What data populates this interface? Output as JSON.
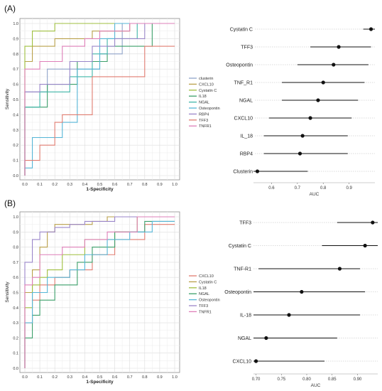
{
  "figure": {
    "panel_labels": [
      "(A)",
      "(B)"
    ]
  },
  "chart_data": [
    {
      "id": "A-roc",
      "type": "line",
      "panel": "(A)",
      "xlabel": "1-Specificity",
      "ylabel": "Sensitivity",
      "xlim": [
        0,
        1
      ],
      "ylim": [
        0,
        1
      ],
      "xticks": [
        "0.0",
        "0.1",
        "0.2",
        "0.3",
        "0.4",
        "0.5",
        "0.6",
        "0.7",
        "0.8",
        "0.9",
        "1.0"
      ],
      "yticks": [
        "0.0",
        "0.1",
        "0.2",
        "0.3",
        "0.4",
        "0.5",
        "0.6",
        "0.7",
        "0.8",
        "0.9",
        "1.0"
      ],
      "grid": true,
      "legend_position": "right",
      "series": [
        {
          "name": "clusterin",
          "color": "#8fa3c9",
          "x": [
            0,
            0,
            0.15,
            0.15,
            0.5,
            0.5,
            0.65,
            0.65,
            1.0
          ],
          "y": [
            0,
            0.55,
            0.55,
            0.7,
            0.7,
            0.8,
            0.8,
            1.0,
            1.0
          ]
        },
        {
          "name": "CXCL10",
          "color": "#b9a04a",
          "x": [
            0,
            0,
            0.05,
            0.05,
            0.2,
            0.2,
            0.45,
            0.45,
            0.7,
            0.7,
            1.0
          ],
          "y": [
            0,
            0.75,
            0.75,
            0.85,
            0.85,
            0.9,
            0.9,
            0.95,
            0.95,
            1.0,
            1.0
          ]
        },
        {
          "name": "Cystatin C",
          "color": "#9fbf3f",
          "x": [
            0,
            0,
            0.05,
            0.05,
            0.2,
            0.2,
            1.0
          ],
          "y": [
            0,
            0.85,
            0.85,
            0.95,
            0.95,
            1.0,
            1.0
          ]
        },
        {
          "name": "IL18",
          "color": "#3c9f6a",
          "x": [
            0,
            0,
            0.15,
            0.15,
            0.35,
            0.35,
            0.55,
            0.55,
            0.85,
            0.85,
            1.0
          ],
          "y": [
            0,
            0.45,
            0.45,
            0.6,
            0.6,
            0.75,
            0.75,
            0.85,
            0.85,
            1.0,
            1.0
          ]
        },
        {
          "name": "NGAL",
          "color": "#3fb6a8",
          "x": [
            0,
            0,
            0.1,
            0.1,
            0.3,
            0.3,
            0.45,
            0.45,
            0.55,
            0.55,
            0.75,
            0.75,
            1.0
          ],
          "y": [
            0,
            0.45,
            0.45,
            0.55,
            0.55,
            0.65,
            0.65,
            0.8,
            0.8,
            0.9,
            0.9,
            1.0,
            1.0
          ]
        },
        {
          "name": "Osteopontin",
          "color": "#55b5d6",
          "x": [
            0,
            0,
            0.05,
            0.05,
            0.25,
            0.25,
            0.35,
            0.35,
            0.5,
            0.5,
            0.6,
            0.6,
            1.0
          ],
          "y": [
            0,
            0.05,
            0.05,
            0.25,
            0.25,
            0.35,
            0.35,
            0.7,
            0.7,
            0.9,
            0.9,
            1.0,
            1.0
          ]
        },
        {
          "name": "RBP4",
          "color": "#9a86c9",
          "x": [
            0,
            0,
            0.1,
            0.1,
            0.3,
            0.3,
            0.45,
            0.45,
            0.6,
            0.6,
            0.8,
            0.8,
            1.0
          ],
          "y": [
            0,
            0.55,
            0.55,
            0.6,
            0.6,
            0.75,
            0.75,
            0.85,
            0.85,
            0.9,
            0.9,
            1.0,
            1.0
          ]
        },
        {
          "name": "TFF3",
          "color": "#e07c70",
          "x": [
            0,
            0,
            0.1,
            0.1,
            0.2,
            0.2,
            0.25,
            0.25,
            0.45,
            0.45,
            0.8,
            0.8,
            1.0
          ],
          "y": [
            0,
            0.1,
            0.1,
            0.2,
            0.2,
            0.35,
            0.35,
            0.4,
            0.4,
            0.65,
            0.65,
            0.85,
            0.85
          ]
        },
        {
          "name": "TNFR1",
          "color": "#de7fb8",
          "x": [
            0,
            0,
            0.1,
            0.1,
            0.25,
            0.25,
            0.4,
            0.4,
            0.5,
            0.5,
            0.7,
            0.7,
            1.0
          ],
          "y": [
            0,
            0.7,
            0.7,
            0.75,
            0.75,
            0.85,
            0.85,
            0.9,
            0.9,
            0.95,
            0.95,
            1.0,
            1.0
          ]
        }
      ]
    },
    {
      "id": "A-auc",
      "type": "scatter",
      "panel": "(A)",
      "xlabel": "AUC",
      "xticks": [
        0.6,
        0.7,
        0.8,
        0.9
      ],
      "xtick_labels": [
        "0.6",
        "0.7",
        "0.8",
        "0.9"
      ],
      "xlim": [
        0.53,
        1.0
      ],
      "categories": [
        "Cystatin C",
        "TFF3",
        "Osteopontin",
        "TNF_R1",
        "NGAL",
        "CXCL10",
        "IL_18",
        "RBP4",
        "Clusterin"
      ],
      "values": [
        0.985,
        0.86,
        0.84,
        0.8,
        0.78,
        0.75,
        0.72,
        0.71,
        0.545
      ],
      "ci_low": [
        0.955,
        0.75,
        0.7,
        0.64,
        0.64,
        0.59,
        0.57,
        0.57,
        0.53
      ],
      "ci_high": [
        1.0,
        0.985,
        0.975,
        0.96,
        0.935,
        0.91,
        0.895,
        0.895,
        0.74
      ]
    },
    {
      "id": "B-roc",
      "type": "line",
      "panel": "(B)",
      "xlabel": "1-Specificity",
      "ylabel": "Sensitivity",
      "xlim": [
        0,
        1
      ],
      "ylim": [
        0,
        1
      ],
      "xticks": [
        "0.0",
        "0.1",
        "0.2",
        "0.3",
        "0.4",
        "0.5",
        "0.6",
        "0.7",
        "0.8",
        "0.9",
        "1.0"
      ],
      "yticks": [
        "0.0",
        "0.1",
        "0.2",
        "0.3",
        "0.4",
        "0.5",
        "0.6",
        "0.7",
        "0.8",
        "0.9",
        "1.0"
      ],
      "grid": true,
      "legend_position": "right",
      "series": [
        {
          "name": "CXCL10",
          "color": "#e07c70",
          "x": [
            0,
            0,
            0.05,
            0.05,
            0.1,
            0.1,
            0.2,
            0.2,
            0.3,
            0.3,
            0.45,
            0.45,
            0.6,
            0.6,
            0.8,
            0.8,
            1.0
          ],
          "y": [
            0,
            0.3,
            0.3,
            0.45,
            0.45,
            0.55,
            0.55,
            0.6,
            0.6,
            0.65,
            0.65,
            0.75,
            0.75,
            0.85,
            0.85,
            0.95,
            0.95
          ]
        },
        {
          "name": "Cystatin C",
          "color": "#b9a04a",
          "x": [
            0,
            0,
            0.05,
            0.05,
            0.1,
            0.1,
            0.15,
            0.15,
            0.2,
            0.2,
            0.45,
            0.45,
            0.55,
            0.55,
            1.0
          ],
          "y": [
            0,
            0.5,
            0.5,
            0.65,
            0.65,
            0.8,
            0.8,
            0.9,
            0.9,
            0.95,
            0.95,
            0.97,
            0.97,
            1.0,
            1.0
          ]
        },
        {
          "name": "IL18",
          "color": "#9fbf3f",
          "x": [
            0,
            0,
            0.05,
            0.05,
            0.1,
            0.1,
            0.15,
            0.15,
            0.25,
            0.25,
            0.4,
            0.4,
            0.6,
            0.6,
            0.75,
            0.75,
            1.0
          ],
          "y": [
            0,
            0.4,
            0.4,
            0.55,
            0.55,
            0.6,
            0.6,
            0.65,
            0.65,
            0.75,
            0.75,
            0.85,
            0.85,
            0.9,
            0.9,
            1.0,
            1.0
          ]
        },
        {
          "name": "NGAL",
          "color": "#3c9f6a",
          "x": [
            0,
            0,
            0.05,
            0.05,
            0.1,
            0.1,
            0.2,
            0.2,
            0.35,
            0.35,
            0.45,
            0.45,
            0.6,
            0.6,
            0.8,
            0.8,
            1.0
          ],
          "y": [
            0,
            0.2,
            0.2,
            0.35,
            0.35,
            0.45,
            0.45,
            0.55,
            0.55,
            0.7,
            0.7,
            0.8,
            0.8,
            0.9,
            0.9,
            0.97,
            0.97
          ]
        },
        {
          "name": "Osteopontin",
          "color": "#55b5d6",
          "x": [
            0,
            0,
            0.05,
            0.05,
            0.15,
            0.15,
            0.3,
            0.3,
            0.4,
            0.4,
            0.55,
            0.55,
            0.7,
            0.7,
            0.85,
            0.85,
            1.0
          ],
          "y": [
            0,
            0.3,
            0.3,
            0.5,
            0.5,
            0.6,
            0.6,
            0.65,
            0.65,
            0.75,
            0.75,
            0.85,
            0.85,
            0.9,
            0.9,
            0.97,
            0.97
          ]
        },
        {
          "name": "TFF3",
          "color": "#9a86c9",
          "x": [
            0,
            0,
            0.05,
            0.05,
            0.1,
            0.1,
            0.2,
            0.2,
            0.3,
            0.3,
            0.4,
            0.4,
            0.6,
            0.6,
            1.0
          ],
          "y": [
            0,
            0.7,
            0.7,
            0.85,
            0.85,
            0.9,
            0.9,
            0.93,
            0.93,
            0.95,
            0.95,
            0.97,
            0.97,
            1.0,
            1.0
          ]
        },
        {
          "name": "TNFR1",
          "color": "#de7fb8",
          "x": [
            0,
            0,
            0.05,
            0.05,
            0.1,
            0.1,
            0.25,
            0.25,
            0.4,
            0.4,
            0.55,
            0.55,
            0.75,
            0.75,
            1.0
          ],
          "y": [
            0,
            0.55,
            0.55,
            0.6,
            0.6,
            0.75,
            0.75,
            0.8,
            0.8,
            0.85,
            0.85,
            0.9,
            0.9,
            1.0,
            1.0
          ]
        }
      ]
    },
    {
      "id": "B-auc",
      "type": "scatter",
      "panel": "(B)",
      "xlabel": "AUC",
      "xticks": [
        0.7,
        0.75,
        0.8,
        0.85,
        0.9
      ],
      "xtick_labels": [
        "0.70",
        "0.75",
        "0.80",
        "0.85",
        "0.90"
      ],
      "xlim": [
        0.695,
        0.94
      ],
      "categories": [
        "TFF3",
        "Cystatin C",
        "TNF-R1",
        "Osteopontin",
        "IL-18",
        "NGAL",
        "CXCL10"
      ],
      "values": [
        0.93,
        0.915,
        0.865,
        0.79,
        0.765,
        0.72,
        0.7
      ],
      "ci_low": [
        0.86,
        0.83,
        0.705,
        0.695,
        0.695,
        0.695,
        0.695
      ],
      "ci_high": [
        0.94,
        0.94,
        0.905,
        0.915,
        0.905,
        0.86,
        0.835
      ]
    }
  ]
}
